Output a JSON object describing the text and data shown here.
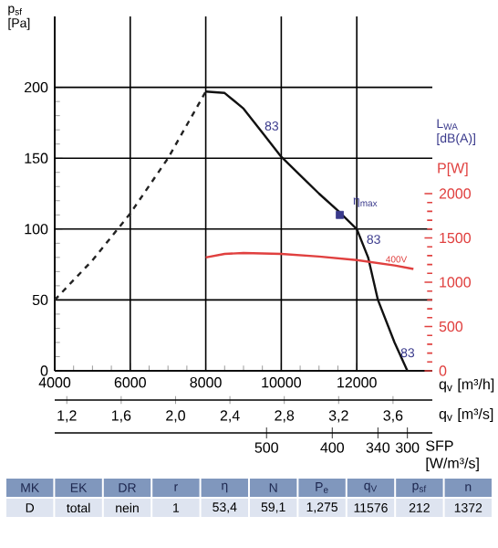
{
  "chart_data": [
    {
      "type": "line",
      "xlabel": "q$_{v}$ [m³/h]",
      "ylabel": "p$_{sf}$ [Pa]",
      "y2label": "P[W]",
      "y3label": "L$_{WA}$ [dB(A)]",
      "x2label": "q$_{v}$ [m³/s]",
      "xlim": [
        4000,
        14000
      ],
      "xticks": [
        4000,
        6000,
        8000,
        10000,
        12000
      ],
      "ylim": [
        0,
        250
      ],
      "yticks": [
        0,
        50,
        100,
        150,
        200
      ],
      "y2lim": [
        0,
        4000
      ],
      "y2ticks": [
        0,
        500,
        1000,
        1500,
        2000
      ],
      "x2lim": [
        1.111,
        3.889
      ],
      "x2ticks": [
        {
          "value": 1.2,
          "label": "1,2"
        },
        {
          "value": 1.6,
          "label": "1,6"
        },
        {
          "value": 2.0,
          "label": "2,0"
        },
        {
          "value": 2.4,
          "label": "2,4"
        },
        {
          "value": 2.8,
          "label": "2,8"
        },
        {
          "value": 3.2,
          "label": "3,2"
        },
        {
          "value": 3.6,
          "label": "3,6"
        }
      ],
      "grid": true,
      "series": [
        {
          "color": "#111111",
          "line_style": "solid",
          "x": [
            8000,
            8500,
            9000,
            9500,
            10000,
            10500,
            11000,
            11500,
            12000,
            12300,
            12560,
            13000,
            13340
          ],
          "values": [
            197,
            196,
            185,
            168,
            151,
            138,
            125,
            113,
            100,
            80,
            50,
            20,
            0
          ]
        },
        {
          "color": "#222222",
          "line_style": "dashed",
          "x": [
            4000,
            5000,
            6000,
            7000,
            8000
          ],
          "values": [
            50,
            78,
            111,
            150,
            197
          ]
        },
        {
          "name": "400V",
          "axis": "y2",
          "color": "#e0403f",
          "line_style": "solid",
          "x": [
            8000,
            8500,
            9000,
            10000,
            11000,
            12000,
            13000,
            13500
          ],
          "values": [
            1280,
            1320,
            1330,
            1320,
            1290,
            1250,
            1190,
            1150
          ]
        },
        {
          "type": "scatter",
          "color": "#3a3a8c",
          "marker": "square",
          "x": [
            11550
          ],
          "values": [
            110
          ]
        }
      ],
      "annotations": [
        {
          "text": "83",
          "x": 9500,
          "y": 168
        },
        {
          "text": "η$_{max}$",
          "x": 11550,
          "y": 110
        },
        {
          "text": "83",
          "x": 12200,
          "y": 88
        },
        {
          "text": "83",
          "x": 13100,
          "y": 8
        },
        "SFP [W/m³/s]",
        "500",
        "400",
        "340",
        "300"
      ]
    },
    {
      "type": "other",
      "categories": [
        "MK",
        "EK",
        "DR",
        "r",
        "η",
        "N",
        "P$_{e}$",
        "q$_{V}$",
        "p$_{sf}$",
        "n"
      ],
      "cell_labels": [
        [
          "D",
          "total",
          "nein",
          "1",
          "53,4",
          "59,1",
          "1,275",
          "11576",
          "212",
          "1372"
        ]
      ]
    }
  ]
}
